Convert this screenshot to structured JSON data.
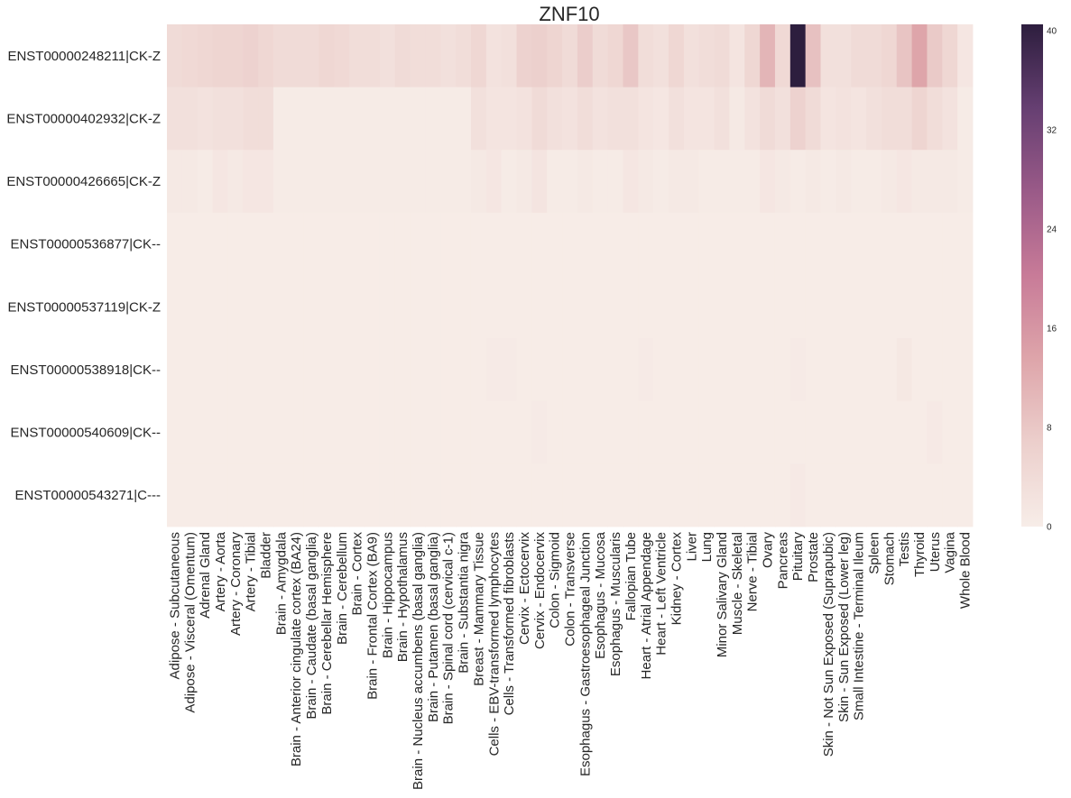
{
  "chart_data": {
    "type": "heatmap",
    "title": "ZNF10",
    "rows": [
      "ENST00000248211|CK-Z",
      "ENST00000402932|CK-Z",
      "ENST00000426665|CK-Z",
      "ENST00000536877|CK--",
      "ENST00000537119|CK-Z",
      "ENST00000538918|CK--",
      "ENST00000540609|CK--",
      "ENST00000543271|C---"
    ],
    "columns": [
      "Adipose - Subcutaneous",
      "Adipose - Visceral (Omentum)",
      "Adrenal Gland",
      "Artery - Aorta",
      "Artery - Coronary",
      "Artery - Tibial",
      "Bladder",
      "Brain - Amygdala",
      "Brain - Anterior cingulate cortex (BA24)",
      "Brain - Caudate (basal ganglia)",
      "Brain - Cerebellar Hemisphere",
      "Brain - Cerebellum",
      "Brain - Cortex",
      "Brain - Frontal Cortex (BA9)",
      "Brain - Hippocampus",
      "Brain - Hypothalamus",
      "Brain - Nucleus accumbens (basal ganglia)",
      "Brain - Putamen (basal ganglia)",
      "Brain - Spinal cord (cervical c-1)",
      "Brain - Substantia nigra",
      "Breast - Mammary Tissue",
      "Cells - EBV-transformed lymphocytes",
      "Cells - Transformed fibroblasts",
      "Cervix - Ectocervix",
      "Cervix - Endocervix",
      "Colon - Sigmoid",
      "Colon - Transverse",
      "Esophagus - Gastroesophageal Junction",
      "Esophagus - Mucosa",
      "Esophagus - Muscularis",
      "Fallopian Tube",
      "Heart - Atrial Appendage",
      "Heart - Left Ventricle",
      "Kidney - Cortex",
      "Liver",
      "Lung",
      "Minor Salivary Gland",
      "Muscle - Skeletal",
      "Nerve - Tibial",
      "Ovary",
      "Pancreas",
      "Pituitary",
      "Prostate",
      "Skin - Not Sun Exposed (Suprapubic)",
      "Skin - Sun Exposed (Lower leg)",
      "Small Intestine - Terminal Ileum",
      "Spleen",
      "Stomach",
      "Testis",
      "Thyroid",
      "Uterus",
      "Vagina",
      "Whole Blood"
    ],
    "values": [
      [
        4.0,
        4.5,
        5.0,
        5.5,
        5.5,
        6.0,
        5.0,
        4.0,
        4.0,
        4.0,
        5.0,
        4.5,
        3.5,
        3.5,
        3.0,
        4.0,
        3.5,
        3.5,
        3.0,
        3.5,
        5.0,
        2.5,
        3.0,
        6.0,
        6.5,
        5.5,
        4.0,
        7.0,
        4.0,
        5.0,
        8.0,
        3.5,
        3.0,
        5.0,
        3.0,
        3.5,
        4.0,
        2.0,
        5.0,
        11.0,
        4.5,
        40.5,
        9.0,
        3.0,
        3.0,
        4.0,
        4.0,
        5.0,
        8.5,
        13.5,
        7.5,
        5.0,
        1.5
      ],
      [
        3.0,
        3.0,
        2.5,
        3.0,
        3.0,
        3.5,
        3.5,
        0.5,
        0.5,
        0.5,
        0.5,
        0.5,
        0.5,
        0.5,
        0.5,
        0.5,
        0.5,
        0.5,
        0.5,
        0.5,
        3.0,
        2.0,
        2.0,
        2.5,
        4.0,
        3.0,
        2.5,
        3.5,
        2.5,
        3.0,
        3.0,
        2.0,
        1.5,
        3.0,
        2.0,
        2.0,
        3.0,
        1.0,
        2.5,
        4.0,
        3.0,
        6.0,
        4.0,
        2.0,
        2.5,
        2.0,
        3.0,
        3.5,
        3.5,
        5.5,
        3.5,
        2.5,
        0.5
      ],
      [
        1.0,
        1.0,
        0.5,
        1.5,
        1.0,
        1.5,
        1.5,
        0.5,
        0.5,
        0.5,
        0.5,
        0.5,
        0.5,
        0.5,
        0.5,
        0.5,
        0.5,
        0.5,
        0.5,
        0.5,
        1.0,
        1.5,
        0.5,
        1.0,
        2.0,
        0.5,
        0.5,
        1.0,
        0.5,
        0.5,
        1.5,
        1.0,
        0.5,
        1.0,
        1.0,
        0.5,
        0.5,
        0.5,
        0.5,
        1.5,
        1.0,
        0.5,
        1.0,
        0.5,
        1.0,
        0.5,
        0.5,
        1.0,
        1.5,
        1.0,
        1.0,
        1.0,
        0.5
      ],
      [
        0.3,
        0.3,
        0.3,
        0.3,
        0.3,
        0.3,
        0.3,
        0.3,
        0.3,
        0.3,
        0.3,
        0.3,
        0.3,
        0.3,
        0.3,
        0.3,
        0.3,
        0.3,
        0.3,
        0.3,
        0.3,
        0.3,
        0.3,
        0.3,
        0.3,
        0.3,
        0.3,
        0.3,
        0.3,
        0.3,
        0.3,
        0.3,
        0.3,
        0.3,
        0.3,
        0.3,
        0.3,
        0.3,
        0.3,
        0.3,
        0.3,
        0.3,
        0.3,
        0.3,
        0.3,
        0.3,
        0.3,
        0.3,
        0.3,
        0.3,
        0.3,
        0.3,
        0.3
      ],
      [
        0.3,
        0.3,
        0.3,
        0.3,
        0.3,
        0.3,
        0.3,
        0.3,
        0.3,
        0.3,
        0.3,
        0.3,
        0.3,
        0.3,
        0.3,
        0.3,
        0.3,
        0.3,
        0.3,
        0.3,
        0.3,
        0.3,
        0.3,
        0.3,
        0.3,
        0.3,
        0.3,
        0.3,
        0.3,
        0.3,
        0.3,
        0.3,
        0.3,
        0.3,
        0.3,
        0.3,
        0.3,
        0.3,
        0.3,
        0.3,
        0.3,
        0.3,
        0.3,
        0.3,
        0.3,
        0.3,
        0.3,
        0.3,
        0.3,
        0.3,
        0.3,
        0.3,
        0.3
      ],
      [
        0.3,
        0.3,
        0.3,
        0.3,
        0.3,
        0.3,
        0.3,
        0.3,
        0.3,
        0.3,
        0.3,
        0.3,
        0.3,
        0.3,
        0.3,
        0.3,
        0.3,
        0.3,
        0.3,
        0.3,
        0.3,
        0.6,
        0.6,
        0.3,
        0.3,
        0.3,
        0.3,
        0.3,
        0.3,
        0.3,
        0.3,
        0.6,
        0.3,
        0.3,
        0.3,
        0.3,
        0.3,
        0.3,
        0.3,
        0.3,
        0.3,
        0.6,
        0.3,
        0.3,
        0.3,
        0.3,
        0.3,
        0.3,
        1.2,
        0.3,
        0.3,
        0.3,
        0.3
      ],
      [
        0.3,
        0.3,
        0.3,
        0.3,
        0.3,
        0.3,
        0.3,
        0.3,
        0.3,
        0.3,
        0.3,
        0.3,
        0.3,
        0.3,
        0.3,
        0.3,
        0.3,
        0.3,
        0.3,
        0.3,
        0.3,
        0.3,
        0.3,
        0.3,
        0.6,
        0.3,
        0.3,
        0.3,
        0.3,
        0.3,
        0.3,
        0.3,
        0.3,
        0.3,
        0.3,
        0.3,
        0.3,
        0.3,
        0.3,
        0.3,
        0.3,
        0.3,
        0.3,
        0.3,
        0.3,
        0.3,
        0.3,
        0.3,
        0.3,
        0.3,
        0.8,
        0.3,
        0.3
      ],
      [
        0.3,
        0.3,
        0.3,
        0.3,
        0.3,
        0.3,
        0.3,
        0.3,
        0.3,
        0.3,
        0.3,
        0.3,
        0.3,
        0.3,
        0.3,
        0.3,
        0.3,
        0.3,
        0.3,
        0.3,
        0.3,
        0.3,
        0.3,
        0.3,
        0.3,
        0.3,
        0.3,
        0.3,
        0.3,
        0.3,
        0.3,
        0.3,
        0.3,
        0.3,
        0.3,
        0.3,
        0.3,
        0.3,
        0.3,
        0.3,
        0.3,
        0.8,
        0.3,
        0.3,
        0.3,
        0.3,
        0.3,
        0.3,
        0.3,
        0.3,
        0.3,
        0.3,
        0.3
      ]
    ],
    "colorbar": {
      "ticks": [
        0,
        8,
        16,
        24,
        32,
        40
      ],
      "vmin": 0,
      "vmax": 40.5
    },
    "colormap": [
      "#f7ede8",
      "#eccfcc",
      "#dea5aa",
      "#c87b98",
      "#9a5a88",
      "#663f72",
      "#2d1e3e"
    ]
  }
}
